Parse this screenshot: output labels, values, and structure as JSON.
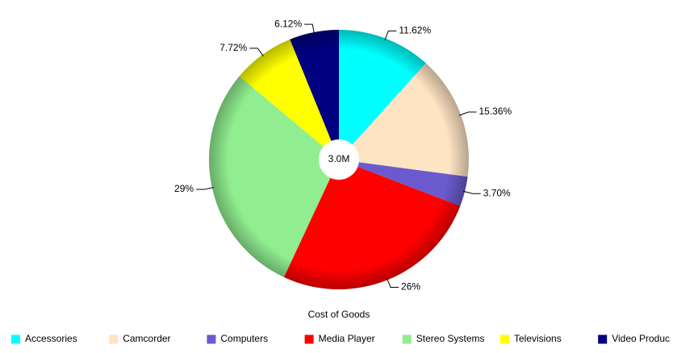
{
  "chart_data": {
    "type": "pie",
    "title": "Cost of Goods",
    "center_label": "3.0M",
    "categories": [
      "Accessories",
      "Camcorder",
      "Computers",
      "Media Player",
      "Stereo Systems",
      "Televisions",
      "Video Produc"
    ],
    "values": [
      11.62,
      15.36,
      3.7,
      26,
      29,
      7.72,
      6.12
    ],
    "value_labels": [
      "11.62%",
      "15.36%",
      "3.70%",
      "26%",
      "29%",
      "7.72%",
      "6.12%"
    ],
    "colors": [
      "#00ffff",
      "#ffe4c4",
      "#6a5acd",
      "#ff0000",
      "#90ee90",
      "#ffff00",
      "#000080"
    ],
    "legend": "bottom"
  }
}
